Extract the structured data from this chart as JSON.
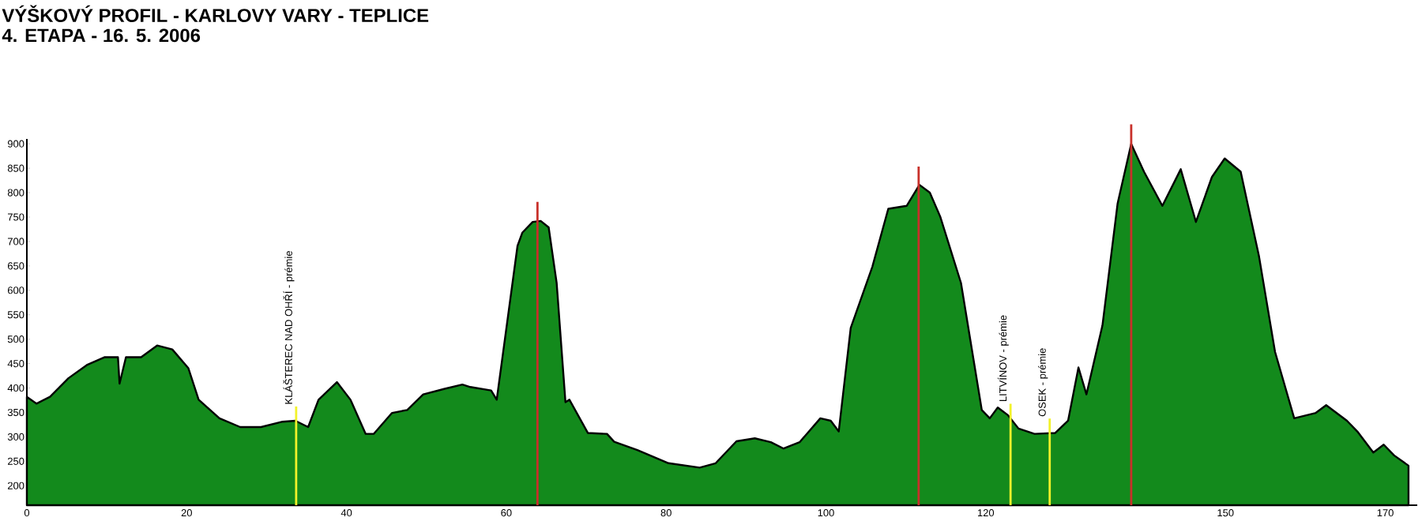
{
  "chart_data": {
    "type": "area",
    "title": "VÝŠKOVÝ PROFIL - KARLOVY VARY - TEPLICE",
    "subtitle": "4. ETAPA - 16. 5. 2006",
    "xlim": [
      0,
      174
    ],
    "ylim": [
      160,
      910
    ],
    "xticks": [
      0,
      20,
      40,
      60,
      80,
      100,
      120,
      150,
      170
    ],
    "yticks": [
      200,
      250,
      300,
      350,
      400,
      450,
      500,
      550,
      600,
      650,
      700,
      750,
      800,
      850,
      900
    ],
    "grid": false,
    "series": [
      {
        "color": "#138a1c",
        "x": [
          0,
          1.2,
          2.9,
          5.2,
          7.5,
          9.7,
          11.4,
          11.6,
          12.4,
          14.3,
          16.3,
          18.2,
          20.2,
          21.5,
          24.1,
          26.7,
          29.3,
          32.0,
          33.6,
          35.2,
          36.5,
          38.8,
          40.5,
          42.4,
          43.4,
          45.7,
          47.6,
          49.6,
          52.2,
          54.5,
          55.5,
          58.1,
          58.8,
          61.4,
          62.0,
          63.3,
          64.3,
          65.3,
          66.3,
          67.4,
          67.9,
          70.2,
          72.6,
          73.5,
          76.4,
          80.3,
          84.2,
          86.2,
          88.8,
          91.1,
          93.1,
          94.7,
          96.7,
          99.3,
          100.6,
          101.6,
          103.1,
          105.8,
          107.8,
          110.1,
          111.7,
          113.0,
          114.3,
          116.9,
          119.5,
          120.5,
          121.5,
          122.8,
          124.1,
          126.1,
          128.7,
          130.3,
          131.6,
          132.6,
          134.6,
          136.5,
          138.2,
          139.8,
          142.1,
          144.4,
          146.3,
          148.3,
          149.9,
          151.9,
          154.2,
          156.2,
          158.6,
          161.3,
          162.6,
          165.2,
          166.5,
          168.5,
          169.8,
          171.1,
          172.9
        ],
        "values": [
          382,
          368,
          382,
          420,
          447,
          463,
          463,
          409,
          463,
          463,
          487,
          479,
          441,
          376,
          338,
          320,
          320,
          331,
          333,
          320,
          376,
          412,
          376,
          306,
          306,
          349,
          355,
          387,
          398,
          407,
          402,
          395,
          376,
          691,
          718,
          740,
          742,
          729,
          615,
          371,
          376,
          308,
          306,
          290,
          273,
          246,
          237,
          246,
          291,
          297,
          289,
          276,
          289,
          338,
          333,
          311,
          523,
          648,
          767,
          773,
          816,
          800,
          751,
          615,
          355,
          338,
          360,
          344,
          317,
          306,
          308,
          333,
          442,
          387,
          528,
          778,
          900,
          843,
          773,
          848,
          740,
          832,
          870,
          843,
          669,
          474,
          338,
          349,
          365,
          333,
          311,
          268,
          284,
          262,
          241
        ]
      }
    ],
    "ref_lines": [
      {
        "axis": "x",
        "value": 33.7,
        "label": "KLÁŠTEREC NAD OHŘÍ - prémie",
        "color": "#f2f22a"
      },
      {
        "axis": "x",
        "value": 63.9,
        "color": "#c8302a"
      },
      {
        "axis": "x",
        "value": 111.6,
        "color": "#c8302a"
      },
      {
        "axis": "x",
        "value": 123.1,
        "label": "LITVÍNOV - prémie",
        "color": "#f2f22a"
      },
      {
        "axis": "x",
        "value": 128.0,
        "label": "OSEK - prémie",
        "color": "#f2f22a"
      },
      {
        "axis": "x",
        "value": 138.2,
        "color": "#c8302a"
      }
    ]
  }
}
